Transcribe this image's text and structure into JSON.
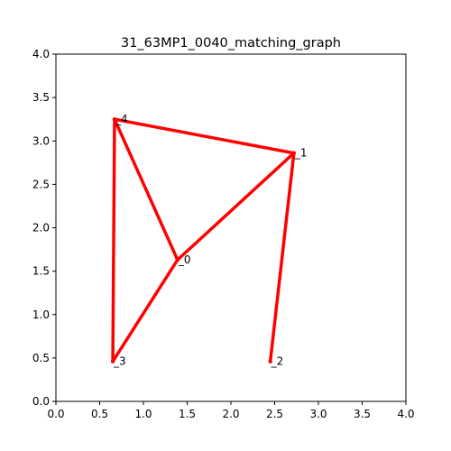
{
  "chart_data": {
    "type": "graph",
    "title": "31_63MP1_0040_matching_graph",
    "xlabel": "",
    "ylabel": "",
    "xlim": [
      0.0,
      4.0
    ],
    "ylim": [
      0.0,
      4.0
    ],
    "xticks": [
      "0.0",
      "0.5",
      "1.0",
      "1.5",
      "2.0",
      "2.5",
      "3.0",
      "3.5",
      "4.0"
    ],
    "yticks": [
      "0.0",
      "0.5",
      "1.0",
      "1.5",
      "2.0",
      "2.5",
      "3.0",
      "3.5",
      "4.0"
    ],
    "grid": false,
    "edge_color": "#ff0000",
    "nodes": [
      {
        "id": "_0",
        "x": 1.39,
        "y": 1.63
      },
      {
        "id": "_1",
        "x": 2.72,
        "y": 2.86
      },
      {
        "id": "_2",
        "x": 2.45,
        "y": 0.46
      },
      {
        "id": "_3",
        "x": 0.65,
        "y": 0.46
      },
      {
        "id": "_4",
        "x": 0.67,
        "y": 3.25
      }
    ],
    "edges": [
      [
        "_4",
        "_1"
      ],
      [
        "_4",
        "_0"
      ],
      [
        "_4",
        "_3"
      ],
      [
        "_0",
        "_1"
      ],
      [
        "_0",
        "_3"
      ],
      [
        "_1",
        "_2"
      ]
    ]
  }
}
